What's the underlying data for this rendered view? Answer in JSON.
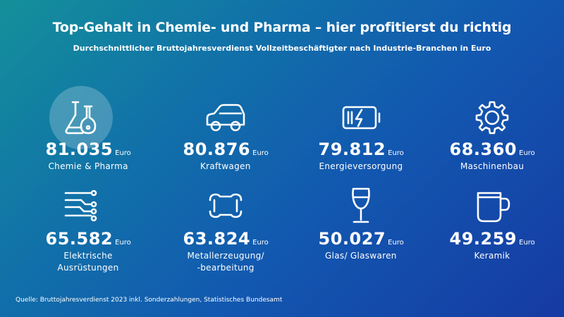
{
  "title": "Top-Gehalt in Chemie- und Pharma – hier profitierst du richtig",
  "subtitle": "Durchschnittlicher Bruttojahresverdienst Vollzeitbeschäftigter nach Industrie-Branchen in Euro",
  "source": "Quelle: Bruttojahresverdienst 2023 inkl. Sonderzahlungen, Statistisches Bundesamt",
  "chart_data": {
    "type": "table",
    "title": "Top-Gehalt in Chemie- und Pharma – hier profitierst du richtig",
    "subtitle": "Durchschnittlicher Bruttojahresverdienst Vollzeitbeschäftigter nach Industrie-Branchen in Euro",
    "unit": "Euro",
    "categories": [
      "Chemie & Pharma",
      "Kraftwagen",
      "Energieversorgung",
      "Maschinenbau",
      "Elektrische Ausrüstungen",
      "Metallerzeugung/ -bearbeitung",
      "Glas/ Glaswaren",
      "Keramik"
    ],
    "values": [
      81035,
      80876,
      79812,
      68360,
      65582,
      63824,
      50027,
      49259
    ],
    "items": [
      {
        "value_text": "81.035",
        "unit": "Euro",
        "label_lines": [
          "Chemie & Pharma"
        ],
        "icon": "flask-icon",
        "highlighted": true
      },
      {
        "value_text": "80.876",
        "unit": "Euro",
        "label_lines": [
          "Kraftwagen"
        ],
        "icon": "car-icon",
        "highlighted": false
      },
      {
        "value_text": "79.812",
        "unit": "Euro",
        "label_lines": [
          "Energieversorgung"
        ],
        "icon": "battery-icon",
        "highlighted": false
      },
      {
        "value_text": "68.360",
        "unit": "Euro",
        "label_lines": [
          "Maschinenbau"
        ],
        "icon": "gear-icon",
        "highlighted": false
      },
      {
        "value_text": "65.582",
        "unit": "Euro",
        "label_lines": [
          "Elektrische",
          "Ausrüstungen"
        ],
        "icon": "circuit-icon",
        "highlighted": false
      },
      {
        "value_text": "63.824",
        "unit": "Euro",
        "label_lines": [
          "Metallerzeugung/",
          "-bearbeitung"
        ],
        "icon": "wrench-icon",
        "highlighted": false
      },
      {
        "value_text": "50.027",
        "unit": "Euro",
        "label_lines": [
          "Glas/ Glaswaren"
        ],
        "icon": "wine-glass-icon",
        "highlighted": false
      },
      {
        "value_text": "49.259",
        "unit": "Euro",
        "label_lines": [
          "Keramik"
        ],
        "icon": "mug-icon",
        "highlighted": false
      }
    ]
  }
}
